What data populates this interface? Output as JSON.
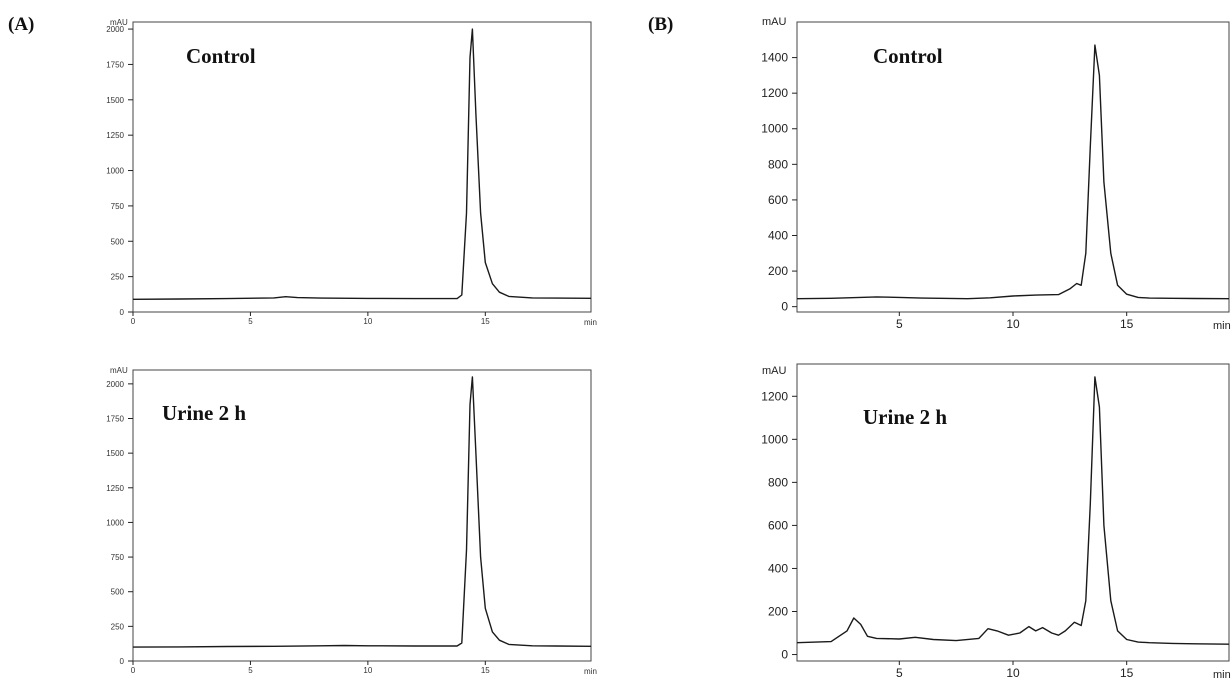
{
  "panels": [
    {
      "tag": "(A)"
    },
    {
      "tag": "(B)"
    }
  ],
  "chart_data": [
    {
      "type": "line",
      "panel": "(A)",
      "title": "Control",
      "ylabel": "mAU",
      "xlabel": "min",
      "ylim": [
        0,
        2050
      ],
      "xlim": [
        0,
        19.5
      ],
      "yticks": [
        0,
        250,
        500,
        750,
        1000,
        1250,
        1500,
        1750,
        2000
      ],
      "xticks": [
        0,
        5,
        10,
        15
      ],
      "x": [
        0,
        2,
        4,
        6,
        6.5,
        7,
        8,
        10,
        12,
        13.8,
        14.0,
        14.2,
        14.35,
        14.45,
        14.6,
        14.8,
        15.0,
        15.3,
        15.6,
        16.0,
        17,
        18,
        19.5
      ],
      "y": [
        90,
        92,
        95,
        100,
        108,
        102,
        98,
        96,
        95,
        95,
        120,
        700,
        1800,
        2000,
        1400,
        700,
        350,
        200,
        140,
        110,
        100,
        98,
        97
      ]
    },
    {
      "type": "line",
      "panel": "(A)",
      "title": "Urine 2 h",
      "ylabel": "mAU",
      "xlabel": "min",
      "ylim": [
        0,
        2100
      ],
      "xlim": [
        0,
        19.5
      ],
      "yticks": [
        0,
        250,
        500,
        750,
        1000,
        1250,
        1500,
        1750,
        2000
      ],
      "xticks": [
        0,
        5,
        10,
        15
      ],
      "x": [
        0,
        2,
        4,
        6,
        8,
        9,
        10,
        12,
        13.8,
        14.0,
        14.2,
        14.35,
        14.45,
        14.6,
        14.8,
        15.0,
        15.3,
        15.6,
        16.0,
        17,
        18,
        19.5
      ],
      "y": [
        100,
        102,
        105,
        106,
        110,
        112,
        110,
        108,
        108,
        130,
        800,
        1850,
        2050,
        1500,
        750,
        380,
        210,
        150,
        120,
        110,
        108,
        106
      ]
    },
    {
      "type": "line",
      "panel": "(B)",
      "title": "Control",
      "ylabel": "mAU",
      "xlabel": "min",
      "ylim": [
        -30,
        1600
      ],
      "xlim": [
        0.5,
        19.5
      ],
      "yticks": [
        0,
        200,
        400,
        600,
        800,
        1000,
        1200,
        1400
      ],
      "xticks": [
        5,
        10,
        15
      ],
      "x": [
        0.5,
        2,
        4,
        5,
        6,
        8,
        9,
        10,
        11,
        12,
        12.5,
        12.8,
        13.0,
        13.2,
        13.4,
        13.6,
        13.8,
        14.0,
        14.3,
        14.6,
        15.0,
        15.5,
        16,
        17,
        18,
        19.5
      ],
      "y": [
        45,
        47,
        55,
        52,
        48,
        45,
        50,
        60,
        65,
        68,
        100,
        130,
        120,
        300,
        900,
        1470,
        1300,
        700,
        300,
        120,
        70,
        52,
        48,
        47,
        46,
        45
      ]
    },
    {
      "type": "line",
      "panel": "(B)",
      "title": "Urine 2 h",
      "ylabel": "mAU",
      "xlabel": "min",
      "ylim": [
        -30,
        1350
      ],
      "xlim": [
        0.5,
        19.5
      ],
      "yticks": [
        0,
        200,
        400,
        600,
        800,
        1000,
        1200
      ],
      "xticks": [
        5,
        10,
        15
      ],
      "x": [
        0.5,
        2,
        2.7,
        3.0,
        3.3,
        3.6,
        4.0,
        5.0,
        5.7,
        6.5,
        7.5,
        8.5,
        8.9,
        9.3,
        9.8,
        10.3,
        10.7,
        11.0,
        11.3,
        11.7,
        12.0,
        12.3,
        12.7,
        13.0,
        13.2,
        13.4,
        13.6,
        13.8,
        14.0,
        14.3,
        14.6,
        15.0,
        15.5,
        16,
        17,
        18,
        19.5
      ],
      "y": [
        55,
        60,
        110,
        170,
        140,
        85,
        75,
        72,
        80,
        70,
        65,
        75,
        120,
        110,
        90,
        100,
        130,
        110,
        125,
        100,
        90,
        110,
        150,
        135,
        250,
        700,
        1290,
        1150,
        600,
        250,
        110,
        70,
        58,
        55,
        52,
        50,
        48
      ]
    }
  ]
}
